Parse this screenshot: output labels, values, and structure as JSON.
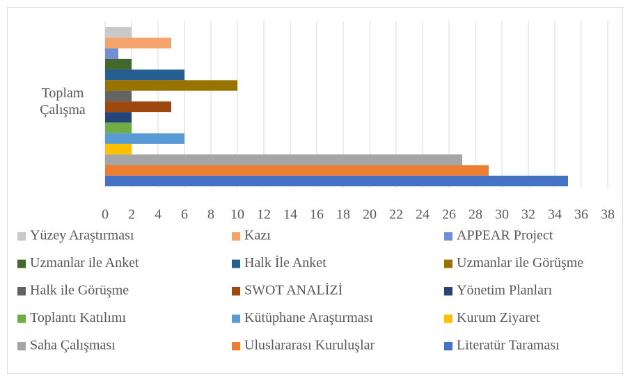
{
  "chart_data": {
    "type": "bar",
    "orientation": "horizontal",
    "categories": [
      "Toplam Çalışma"
    ],
    "series": [
      {
        "name": "Yüzey Araştırması",
        "color": "#c9c9c9",
        "values": [
          2
        ]
      },
      {
        "name": "Kazı",
        "color": "#f4a46a",
        "values": [
          5
        ]
      },
      {
        "name": "APPEAR Project",
        "color": "#6f8fd6",
        "values": [
          1
        ]
      },
      {
        "name": "Uzmanlar ile Anket",
        "color": "#43682b",
        "values": [
          2
        ]
      },
      {
        "name": "Halk İle Anket",
        "color": "#255e91",
        "values": [
          6
        ]
      },
      {
        "name": "Uzmanlar ile Görüşme",
        "color": "#997300",
        "values": [
          10
        ]
      },
      {
        "name": "Halk ile Görüşme",
        "color": "#636363",
        "values": [
          2
        ]
      },
      {
        "name": "SWOT ANALİZİ",
        "color": "#9e480e",
        "values": [
          5
        ]
      },
      {
        "name": "Yönetim Planları",
        "color": "#264478",
        "values": [
          2
        ]
      },
      {
        "name": "Toplantı Katılımı",
        "color": "#70ad47",
        "values": [
          2
        ]
      },
      {
        "name": "Kütüphane Araştırması",
        "color": "#5b9bd5",
        "values": [
          6
        ]
      },
      {
        "name": "Kurum Ziyaret",
        "color": "#ffc000",
        "values": [
          2
        ]
      },
      {
        "name": "Saha Çalışması",
        "color": "#a5a5a5",
        "values": [
          27
        ]
      },
      {
        "name": "Uluslararası Kuruluşlar",
        "color": "#ed7d31",
        "values": [
          29
        ]
      },
      {
        "name": "Literatür Taraması",
        "color": "#4472c4",
        "values": [
          35
        ]
      }
    ],
    "xlim": [
      0,
      38
    ],
    "xticks": [
      0,
      2,
      4,
      6,
      8,
      10,
      12,
      14,
      16,
      18,
      20,
      22,
      24,
      26,
      28,
      30,
      32,
      34,
      36,
      38
    ],
    "grid": true,
    "legend": "bottom"
  }
}
